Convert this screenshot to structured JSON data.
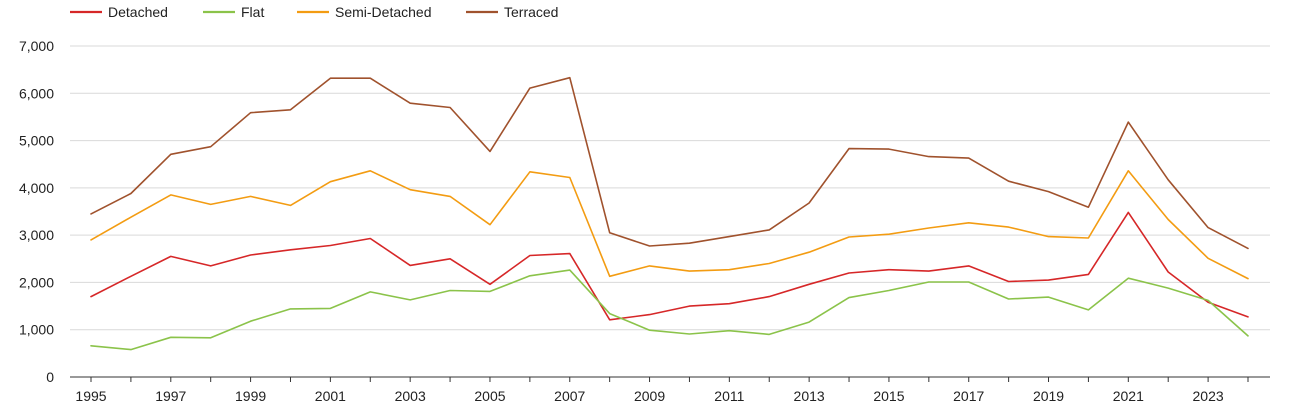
{
  "chart_data": {
    "type": "line",
    "title": "",
    "xlabel": "",
    "ylabel": "",
    "x": [
      1995,
      1996,
      1997,
      1998,
      1999,
      2000,
      2001,
      2002,
      2003,
      2004,
      2005,
      2006,
      2007,
      2008,
      2009,
      2010,
      2011,
      2012,
      2013,
      2014,
      2015,
      2016,
      2017,
      2018,
      2019,
      2020,
      2021,
      2022,
      2023,
      2024
    ],
    "x_tick_labels": [
      "1995",
      "1997",
      "1999",
      "2001",
      "2003",
      "2005",
      "2007",
      "2009",
      "2011",
      "2013",
      "2015",
      "2017",
      "2019",
      "2021",
      "2023"
    ],
    "y_tick_labels": [
      "0",
      "1,000",
      "2,000",
      "3,000",
      "4,000",
      "5,000",
      "6,000",
      "7,000"
    ],
    "ylim": [
      0,
      7000
    ],
    "grid": "horizontal",
    "legend_position": "top-left",
    "series": [
      {
        "name": "Detached",
        "color": "#d62728",
        "values": [
          1700,
          2130,
          2550,
          2350,
          2580,
          2690,
          2780,
          2930,
          2360,
          2500,
          1960,
          2570,
          2610,
          1210,
          1320,
          1500,
          1550,
          1700,
          1960,
          2200,
          2270,
          2240,
          2350,
          2020,
          2050,
          2170,
          3480,
          2220,
          1580,
          1270
        ]
      },
      {
        "name": "Flat",
        "color": "#8bc34a",
        "values": [
          660,
          580,
          840,
          830,
          1180,
          1440,
          1450,
          1800,
          1630,
          1830,
          1810,
          2140,
          2260,
          1340,
          990,
          910,
          980,
          900,
          1160,
          1680,
          1830,
          2010,
          2010,
          1650,
          1690,
          1420,
          2090,
          1880,
          1620,
          870
        ]
      },
      {
        "name": "Semi-Detached",
        "color": "#f39c12",
        "values": [
          2900,
          3380,
          3850,
          3650,
          3820,
          3630,
          4130,
          4360,
          3960,
          3820,
          3220,
          4340,
          4220,
          2130,
          2350,
          2240,
          2270,
          2400,
          2640,
          2960,
          3020,
          3150,
          3260,
          3170,
          2970,
          2940,
          4360,
          3330,
          2510,
          2080
        ]
      },
      {
        "name": "Terraced",
        "color": "#a0522d",
        "values": [
          3450,
          3880,
          4710,
          4870,
          5590,
          5650,
          6320,
          6320,
          5790,
          5700,
          4770,
          6110,
          6330,
          3050,
          2770,
          2830,
          2970,
          3110,
          3680,
          4830,
          4820,
          4660,
          4630,
          4140,
          3920,
          3590,
          5390,
          4170,
          3160,
          2720
        ]
      }
    ]
  }
}
